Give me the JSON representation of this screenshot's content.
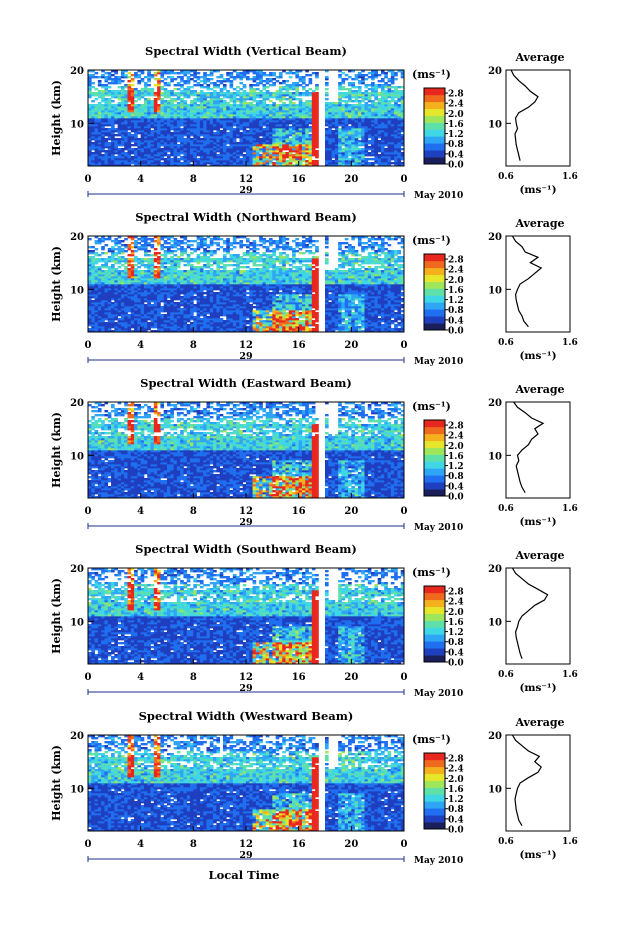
{
  "page": {
    "month_label": "May 2010",
    "xlabel": "Local Time",
    "date_label": "29"
  },
  "colorbar": {
    "unit": "(ms⁻¹)",
    "ticks": [
      "2.8",
      "2.4",
      "2.0",
      "1.6",
      "1.2",
      "0.8",
      "0.4",
      "0.0"
    ],
    "range": [
      0.0,
      3.0
    ],
    "colors": [
      "#1a1f5c",
      "#1e3fbf",
      "#1f6ff0",
      "#2fa5f5",
      "#3fd6e6",
      "#5fe0a8",
      "#a0e65a",
      "#e6e62a",
      "#f5b01e",
      "#f06a1e",
      "#e8281e"
    ]
  },
  "chart_data": [
    {
      "type": "heatmap",
      "title": "Spectral Width (Vertical Beam)",
      "ylabel": "Height (km)",
      "xlim": [
        0,
        24
      ],
      "ylim": [
        2,
        20
      ],
      "x_ticks": [
        "0",
        "4",
        "8",
        "12",
        "16",
        "20",
        "0"
      ],
      "y_ticks": [
        "20",
        "10"
      ],
      "average": {
        "title": "Average",
        "xlabel": "(ms⁻¹)",
        "x_ticks": [
          "0.6",
          "1.6"
        ],
        "xlim": [
          0.6,
          1.6
        ],
        "heights": [
          3,
          4,
          5,
          6,
          7,
          8,
          9,
          10,
          11,
          12,
          13,
          14,
          15,
          16,
          17,
          18,
          19,
          20
        ],
        "values": [
          0.82,
          0.8,
          0.78,
          0.76,
          0.75,
          0.74,
          0.78,
          0.76,
          0.75,
          0.8,
          0.95,
          1.05,
          1.1,
          0.98,
          0.9,
          0.8,
          0.72,
          0.68
        ]
      }
    },
    {
      "type": "heatmap",
      "title": "Spectral Width (Northward Beam)",
      "ylabel": "Height (km)",
      "xlim": [
        0,
        24
      ],
      "ylim": [
        2,
        20
      ],
      "x_ticks": [
        "0",
        "4",
        "8",
        "12",
        "16",
        "20",
        "0"
      ],
      "y_ticks": [
        "20",
        "10"
      ],
      "average": {
        "title": "Average",
        "xlabel": "(ms⁻¹)",
        "x_ticks": [
          "0.6",
          "1.6"
        ],
        "xlim": [
          0.6,
          1.6
        ],
        "heights": [
          3,
          4,
          5,
          6,
          7,
          8,
          9,
          10,
          11,
          12,
          13,
          14,
          15,
          16,
          17,
          18,
          19,
          20
        ],
        "values": [
          0.95,
          0.88,
          0.85,
          0.8,
          0.78,
          0.76,
          0.75,
          0.78,
          0.82,
          0.95,
          1.05,
          1.15,
          0.98,
          1.1,
          0.9,
          0.85,
          0.75,
          0.7
        ]
      }
    },
    {
      "type": "heatmap",
      "title": "Spectral Width (Eastward Beam)",
      "ylabel": "Height (km)",
      "xlim": [
        0,
        24
      ],
      "ylim": [
        2,
        20
      ],
      "x_ticks": [
        "0",
        "4",
        "8",
        "12",
        "16",
        "20",
        "0"
      ],
      "y_ticks": [
        "20",
        "10"
      ],
      "average": {
        "title": "Average",
        "xlabel": "(ms⁻¹)",
        "x_ticks": [
          "0.6",
          "1.6"
        ],
        "xlim": [
          0.6,
          1.6
        ],
        "heights": [
          3,
          4,
          5,
          6,
          7,
          8,
          9,
          10,
          11,
          12,
          13,
          14,
          15,
          16,
          17,
          18,
          19,
          20
        ],
        "values": [
          0.9,
          0.85,
          0.82,
          0.8,
          0.78,
          0.76,
          0.8,
          0.78,
          0.85,
          0.95,
          1.0,
          1.1,
          1.05,
          1.18,
          1.0,
          0.9,
          0.78,
          0.72
        ]
      }
    },
    {
      "type": "heatmap",
      "title": "Spectral Width (Southward Beam)",
      "ylabel": "Height (km)",
      "xlim": [
        0,
        24
      ],
      "ylim": [
        2,
        20
      ],
      "x_ticks": [
        "0",
        "4",
        "8",
        "12",
        "16",
        "20",
        "0"
      ],
      "y_ticks": [
        "20",
        "10"
      ],
      "average": {
        "title": "Average",
        "xlabel": "(ms⁻¹)",
        "x_ticks": [
          "0.6",
          "1.6"
        ],
        "xlim": [
          0.6,
          1.6
        ],
        "heights": [
          3,
          4,
          5,
          6,
          7,
          8,
          9,
          10,
          11,
          12,
          13,
          14,
          15,
          16,
          17,
          18,
          19,
          20
        ],
        "values": [
          0.85,
          0.82,
          0.8,
          0.78,
          0.76,
          0.75,
          0.78,
          0.8,
          0.85,
          0.95,
          1.05,
          1.2,
          1.25,
          1.1,
          0.95,
          0.85,
          0.75,
          0.7
        ]
      }
    },
    {
      "type": "heatmap",
      "title": "Spectral Width (Westward Beam)",
      "ylabel": "Height (km)",
      "xlim": [
        0,
        24
      ],
      "ylim": [
        2,
        20
      ],
      "x_ticks": [
        "0",
        "4",
        "8",
        "12",
        "16",
        "20",
        "0"
      ],
      "y_ticks": [
        "20",
        "10"
      ],
      "average": {
        "title": "Average",
        "xlabel": "(ms⁻¹)",
        "x_ticks": [
          "0.6",
          "1.6"
        ],
        "xlim": [
          0.6,
          1.6
        ],
        "heights": [
          3,
          4,
          5,
          6,
          7,
          8,
          9,
          10,
          11,
          12,
          13,
          14,
          15,
          16,
          17,
          18,
          19,
          20
        ],
        "values": [
          0.85,
          0.8,
          0.78,
          0.76,
          0.75,
          0.74,
          0.76,
          0.78,
          0.82,
          0.95,
          1.1,
          1.15,
          1.05,
          1.12,
          0.95,
          0.85,
          0.75,
          0.7
        ]
      }
    }
  ]
}
